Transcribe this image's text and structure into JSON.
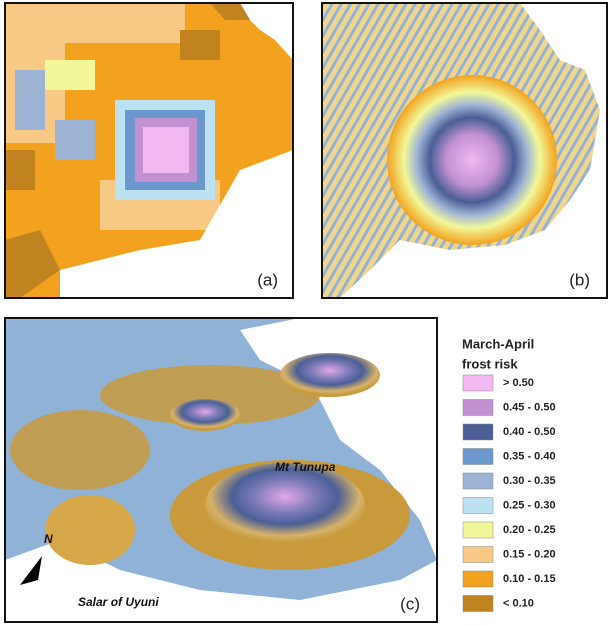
{
  "panels": [
    {
      "label": "(a)"
    },
    {
      "label": "(b)"
    },
    {
      "label": "(c)",
      "annotations": [
        "Mt Tunupa",
        "Salar of Uyuni"
      ],
      "north": "N"
    }
  ],
  "legend": {
    "title": [
      "March-April",
      "frost risk"
    ],
    "items": [
      {
        "label": "> 0.50",
        "color": "#f2b8f2"
      },
      {
        "label": "0.45 - 0.50",
        "color": "#c391d2"
      },
      {
        "label": "0.40 - 0.50",
        "color": "#4b5f96"
      },
      {
        "label": "0.35 - 0.40",
        "color": "#6b97cc"
      },
      {
        "label": "0.30 - 0.35",
        "color": "#9db3d4"
      },
      {
        "label": "0.25 - 0.30",
        "color": "#bce2f2"
      },
      {
        "label": "0.20 - 0.25",
        "color": "#f2f89a"
      },
      {
        "label": "0.15 - 0.20",
        "color": "#f8c985"
      },
      {
        "label": "0.10 - 0.15",
        "color": "#f2a21e"
      },
      {
        "label": "< 0.10",
        "color": "#c0831f"
      }
    ]
  }
}
